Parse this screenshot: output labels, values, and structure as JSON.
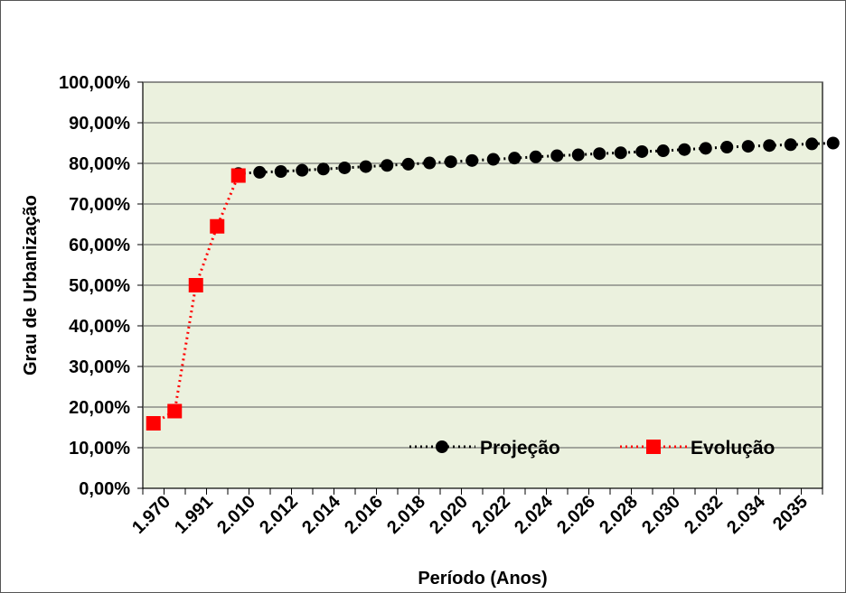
{
  "chart_data": {
    "type": "line",
    "xlabel": "Período (Anos)",
    "ylabel": "Grau de Urbanização",
    "ylim": [
      0,
      100
    ],
    "y_ticks": [
      "0,00%",
      "10,00%",
      "20,00%",
      "30,00%",
      "40,00%",
      "50,00%",
      "60,00%",
      "70,00%",
      "80,00%",
      "90,00%",
      "100,00%"
    ],
    "categories": [
      "1.970",
      "1.991",
      "2.010",
      "2.012",
      "2.014",
      "2.016",
      "2.018",
      "2.020",
      "2.022",
      "2.024",
      "2.026",
      "2.028",
      "2.030",
      "2.032",
      "2.034",
      "2035"
    ],
    "grid": "horizontal",
    "legend_position": "bottom-right",
    "series": [
      {
        "name": "Projeção",
        "color": "#000000",
        "marker": "circle",
        "line_style": "dotted",
        "x": [
          4,
          5,
          6,
          7,
          8,
          9,
          10,
          11,
          12,
          13,
          14,
          15,
          16,
          17,
          18,
          19,
          20,
          21,
          22,
          23,
          24,
          25,
          26,
          27,
          28,
          29,
          30,
          31,
          32
        ],
        "values": [
          77.5,
          77.8,
          78.0,
          78.3,
          78.6,
          78.9,
          79.2,
          79.5,
          79.8,
          80.1,
          80.4,
          80.7,
          81.0,
          81.3,
          81.6,
          81.9,
          82.1,
          82.4,
          82.6,
          82.9,
          83.1,
          83.4,
          83.7,
          84.0,
          84.2,
          84.4,
          84.6,
          84.8,
          85.0
        ]
      },
      {
        "name": "Evolução",
        "color": "#ff0000",
        "marker": "square",
        "line_style": "dotted",
        "x": [
          0,
          1,
          2,
          3,
          4
        ],
        "values": [
          16.0,
          19.0,
          50.0,
          64.5,
          77.0
        ]
      }
    ]
  }
}
